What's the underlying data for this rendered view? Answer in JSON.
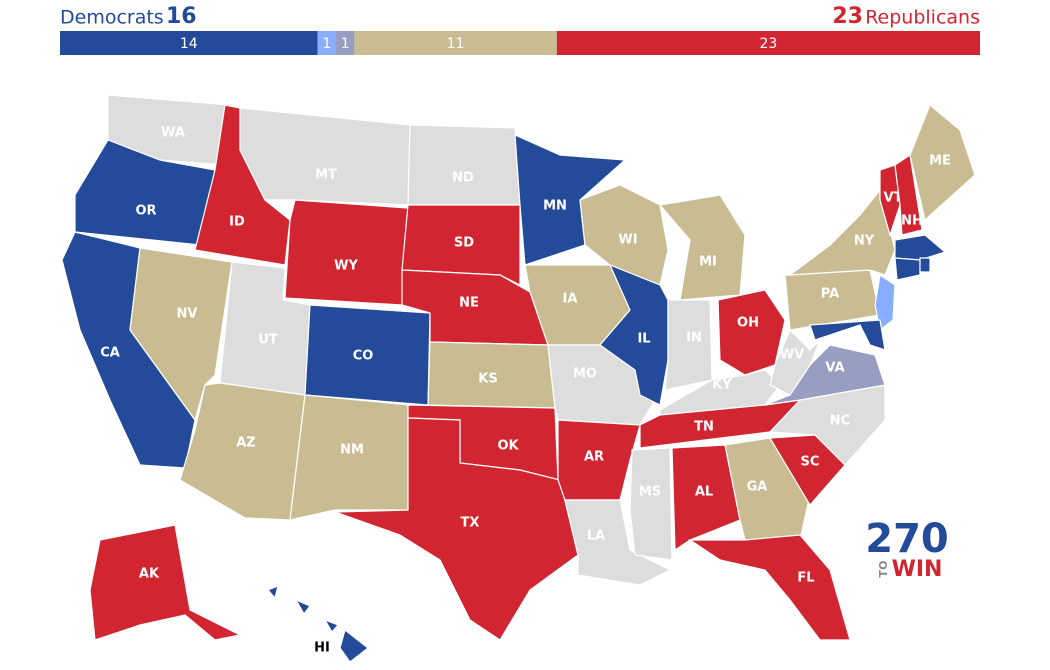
{
  "header": {
    "left_label": "Democrats",
    "left_count": 16,
    "right_count": 23,
    "right_label": "Republicans",
    "left_color": "#244a9a",
    "right_color": "#d22532"
  },
  "bar": {
    "total": 50,
    "segments": [
      {
        "value": 14,
        "color": "#244a9a"
      },
      {
        "value": 1,
        "color": "#8aaeff"
      },
      {
        "value": 1,
        "color": "#979ec2"
      },
      {
        "value": 11,
        "color": "#c9bc92"
      },
      {
        "value": 23,
        "color": "#d22532"
      }
    ]
  },
  "states": [
    {
      "label": "WA",
      "color": "#dddddd"
    },
    {
      "label": "OR",
      "color": "#244a9a"
    },
    {
      "label": "CA",
      "color": "#244a9a"
    },
    {
      "label": "ID",
      "color": "#d22532"
    },
    {
      "label": "NV",
      "color": "#c9bc92"
    },
    {
      "label": "MT",
      "color": "#dddddd"
    },
    {
      "label": "WY",
      "color": "#d22532"
    },
    {
      "label": "UT",
      "color": "#dddddd"
    },
    {
      "label": "AZ",
      "color": "#c9bc92"
    },
    {
      "label": "CO",
      "color": "#244a9a"
    },
    {
      "label": "NM",
      "color": "#c9bc92"
    },
    {
      "label": "ND",
      "color": "#dddddd"
    },
    {
      "label": "SD",
      "color": "#d22532"
    },
    {
      "label": "NE",
      "color": "#d22532"
    },
    {
      "label": "KS",
      "color": "#c9bc92"
    },
    {
      "label": "OK",
      "color": "#d22532"
    },
    {
      "label": "TX",
      "color": "#d22532"
    },
    {
      "label": "MN",
      "color": "#244a9a"
    },
    {
      "label": "IA",
      "color": "#c9bc92"
    },
    {
      "label": "MO",
      "color": "#dddddd"
    },
    {
      "label": "AR",
      "color": "#d22532"
    },
    {
      "label": "LA",
      "color": "#dddddd"
    },
    {
      "label": "WI",
      "color": "#c9bc92"
    },
    {
      "label": "IL",
      "color": "#244a9a"
    },
    {
      "label": "MI",
      "color": "#c9bc92"
    },
    {
      "label": "IN",
      "color": "#dddddd"
    },
    {
      "label": "OH",
      "color": "#d22532"
    },
    {
      "label": "KY",
      "color": "#dddddd"
    },
    {
      "label": "TN",
      "color": "#d22532"
    },
    {
      "label": "MS",
      "color": "#dddddd"
    },
    {
      "label": "AL",
      "color": "#d22532"
    },
    {
      "label": "GA",
      "color": "#c9bc92"
    },
    {
      "label": "FL",
      "color": "#d22532"
    },
    {
      "label": "SC",
      "color": "#d22532"
    },
    {
      "label": "NC",
      "color": "#dddddd"
    },
    {
      "label": "VA",
      "color": "#979ec2"
    },
    {
      "label": "WV",
      "color": "#dddddd"
    },
    {
      "label": "PA",
      "color": "#c9bc92"
    },
    {
      "label": "NY",
      "color": "#c9bc92"
    },
    {
      "color": "#8aaeff"
    },
    {
      "color": "#244a9a"
    },
    {
      "label": "VT",
      "color": "#d22532"
    },
    {
      "label": "NH",
      "color": "#d22532"
    },
    {
      "label": "ME",
      "color": "#c9bc92"
    },
    {
      "color": "#244a9a"
    },
    {
      "color": "#244a9a"
    },
    {
      "color": "#244a9a"
    },
    {
      "label": "AK",
      "color": "#d22532"
    },
    {
      "label": "HI",
      "color": "#244a9a"
    }
  ],
  "logo": {
    "number": "270",
    "small": "TO",
    "word": "WIN"
  }
}
